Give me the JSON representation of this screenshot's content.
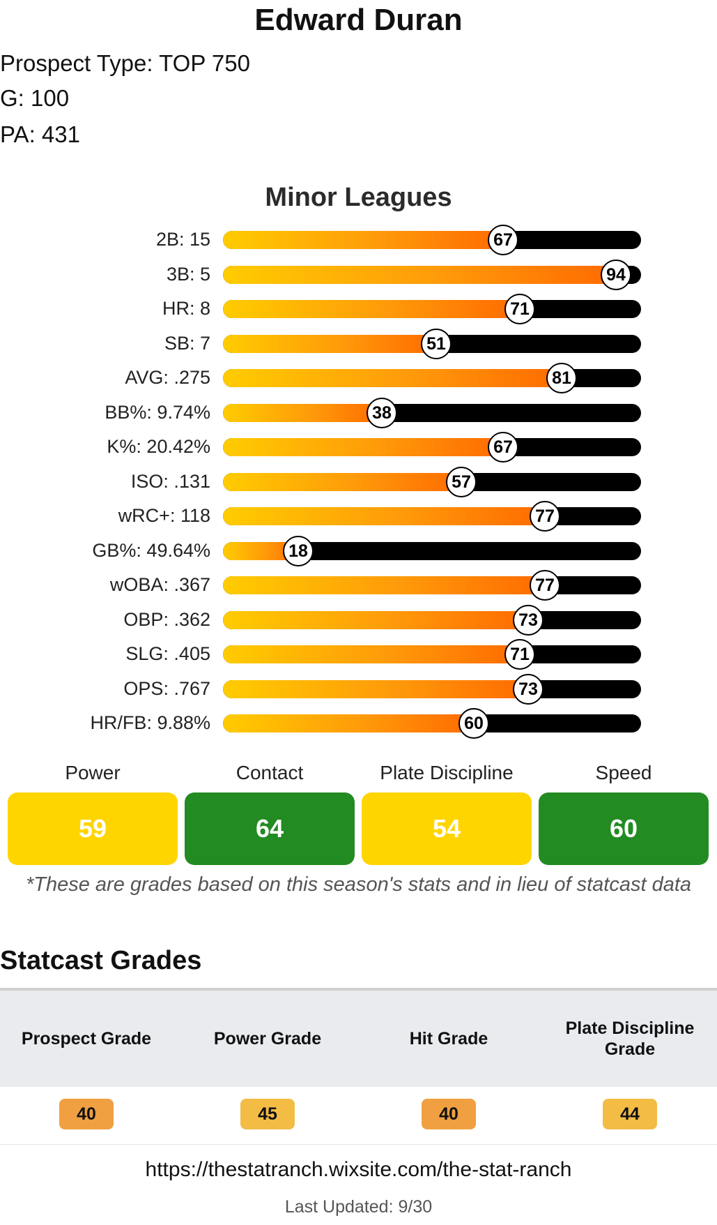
{
  "player": {
    "name": "Edward Duran",
    "prospect_type": "Prospect Type: TOP 750",
    "games": "G: 100",
    "pa": "PA: 431"
  },
  "minor_leagues": {
    "title": "Minor Leagues",
    "stats": [
      {
        "label": "2B: 15",
        "percentile": 67
      },
      {
        "label": "3B: 5",
        "percentile": 94
      },
      {
        "label": "HR: 8",
        "percentile": 71
      },
      {
        "label": "SB: 7",
        "percentile": 51
      },
      {
        "label": "AVG: .275",
        "percentile": 81
      },
      {
        "label": "BB%: 9.74%",
        "percentile": 38
      },
      {
        "label": "K%: 20.42%",
        "percentile": 67
      },
      {
        "label": "ISO: .131",
        "percentile": 57
      },
      {
        "label": "wRC+: 118",
        "percentile": 77
      },
      {
        "label": "GB%: 49.64%",
        "percentile": 18
      },
      {
        "label": "wOBA: .367",
        "percentile": 77
      },
      {
        "label": "OBP: .362",
        "percentile": 73
      },
      {
        "label": "SLG: .405",
        "percentile": 71
      },
      {
        "label": "OPS: .767",
        "percentile": 73
      },
      {
        "label": "HR/FB: 9.88%",
        "percentile": 60
      }
    ]
  },
  "grades": [
    {
      "label": "Power",
      "value": "59",
      "color": "#ffd500"
    },
    {
      "label": "Contact",
      "value": "64",
      "color": "#228b22"
    },
    {
      "label": "Plate Discipline",
      "value": "54",
      "color": "#ffd500"
    },
    {
      "label": "Speed",
      "value": "60",
      "color": "#228b22"
    }
  ],
  "footnote": "*These are grades based on this season's stats and in lieu of statcast data",
  "statcast": {
    "title": "Statcast Grades",
    "columns": [
      {
        "header": "Prospect Grade",
        "value": "40",
        "color": "#f0a040"
      },
      {
        "header": "Power Grade",
        "value": "45",
        "color": "#f2bc45"
      },
      {
        "header": "Hit Grade",
        "value": "40",
        "color": "#f0a040"
      },
      {
        "header": "Plate Discipline Grade",
        "value": "44",
        "color": "#f2bc45"
      }
    ]
  },
  "footer": {
    "url": "https://thestatranch.wixsite.com/the-stat-ranch",
    "last_updated": "Last Updated: 9/30"
  }
}
